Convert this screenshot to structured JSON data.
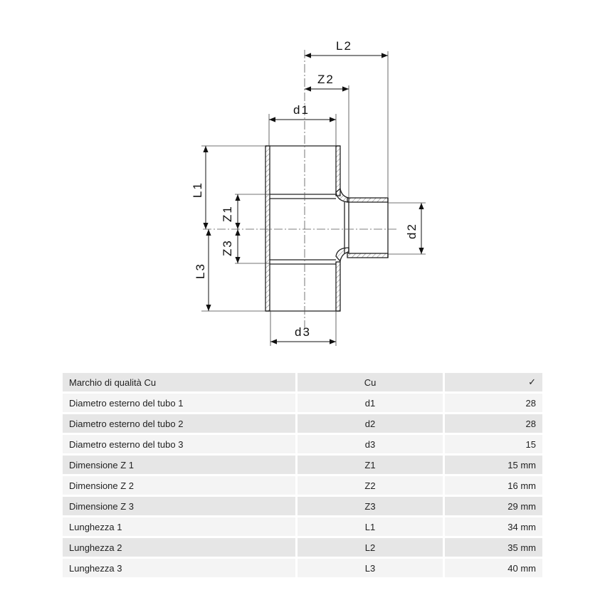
{
  "diagram": {
    "labels": {
      "L1": "L1",
      "L2": "L2",
      "L3": "L3",
      "Z1": "Z1",
      "Z2": "Z2",
      "Z3": "Z3",
      "d1": "d1",
      "d2": "d2",
      "d3": "d3"
    }
  },
  "table": {
    "rows": [
      {
        "name": "Marchio di qualità Cu",
        "symbol": "Cu",
        "value": "✓"
      },
      {
        "name": "Diametro esterno del tubo 1",
        "symbol": "d1",
        "value": "28"
      },
      {
        "name": "Diametro esterno del tubo 2",
        "symbol": "d2",
        "value": "28"
      },
      {
        "name": "Diametro esterno del tubo 3",
        "symbol": "d3",
        "value": "15"
      },
      {
        "name": "Dimensione Z 1",
        "symbol": "Z1",
        "value": "15 mm"
      },
      {
        "name": "Dimensione Z 2",
        "symbol": "Z2",
        "value": "16 mm"
      },
      {
        "name": "Dimensione Z 3",
        "symbol": "Z3",
        "value": "29 mm"
      },
      {
        "name": "Lunghezza 1",
        "symbol": "L1",
        "value": "34 mm"
      },
      {
        "name": "Lunghezza 2",
        "symbol": "L2",
        "value": "35 mm"
      },
      {
        "name": "Lunghezza 3",
        "symbol": "L3",
        "value": "40 mm"
      }
    ]
  }
}
